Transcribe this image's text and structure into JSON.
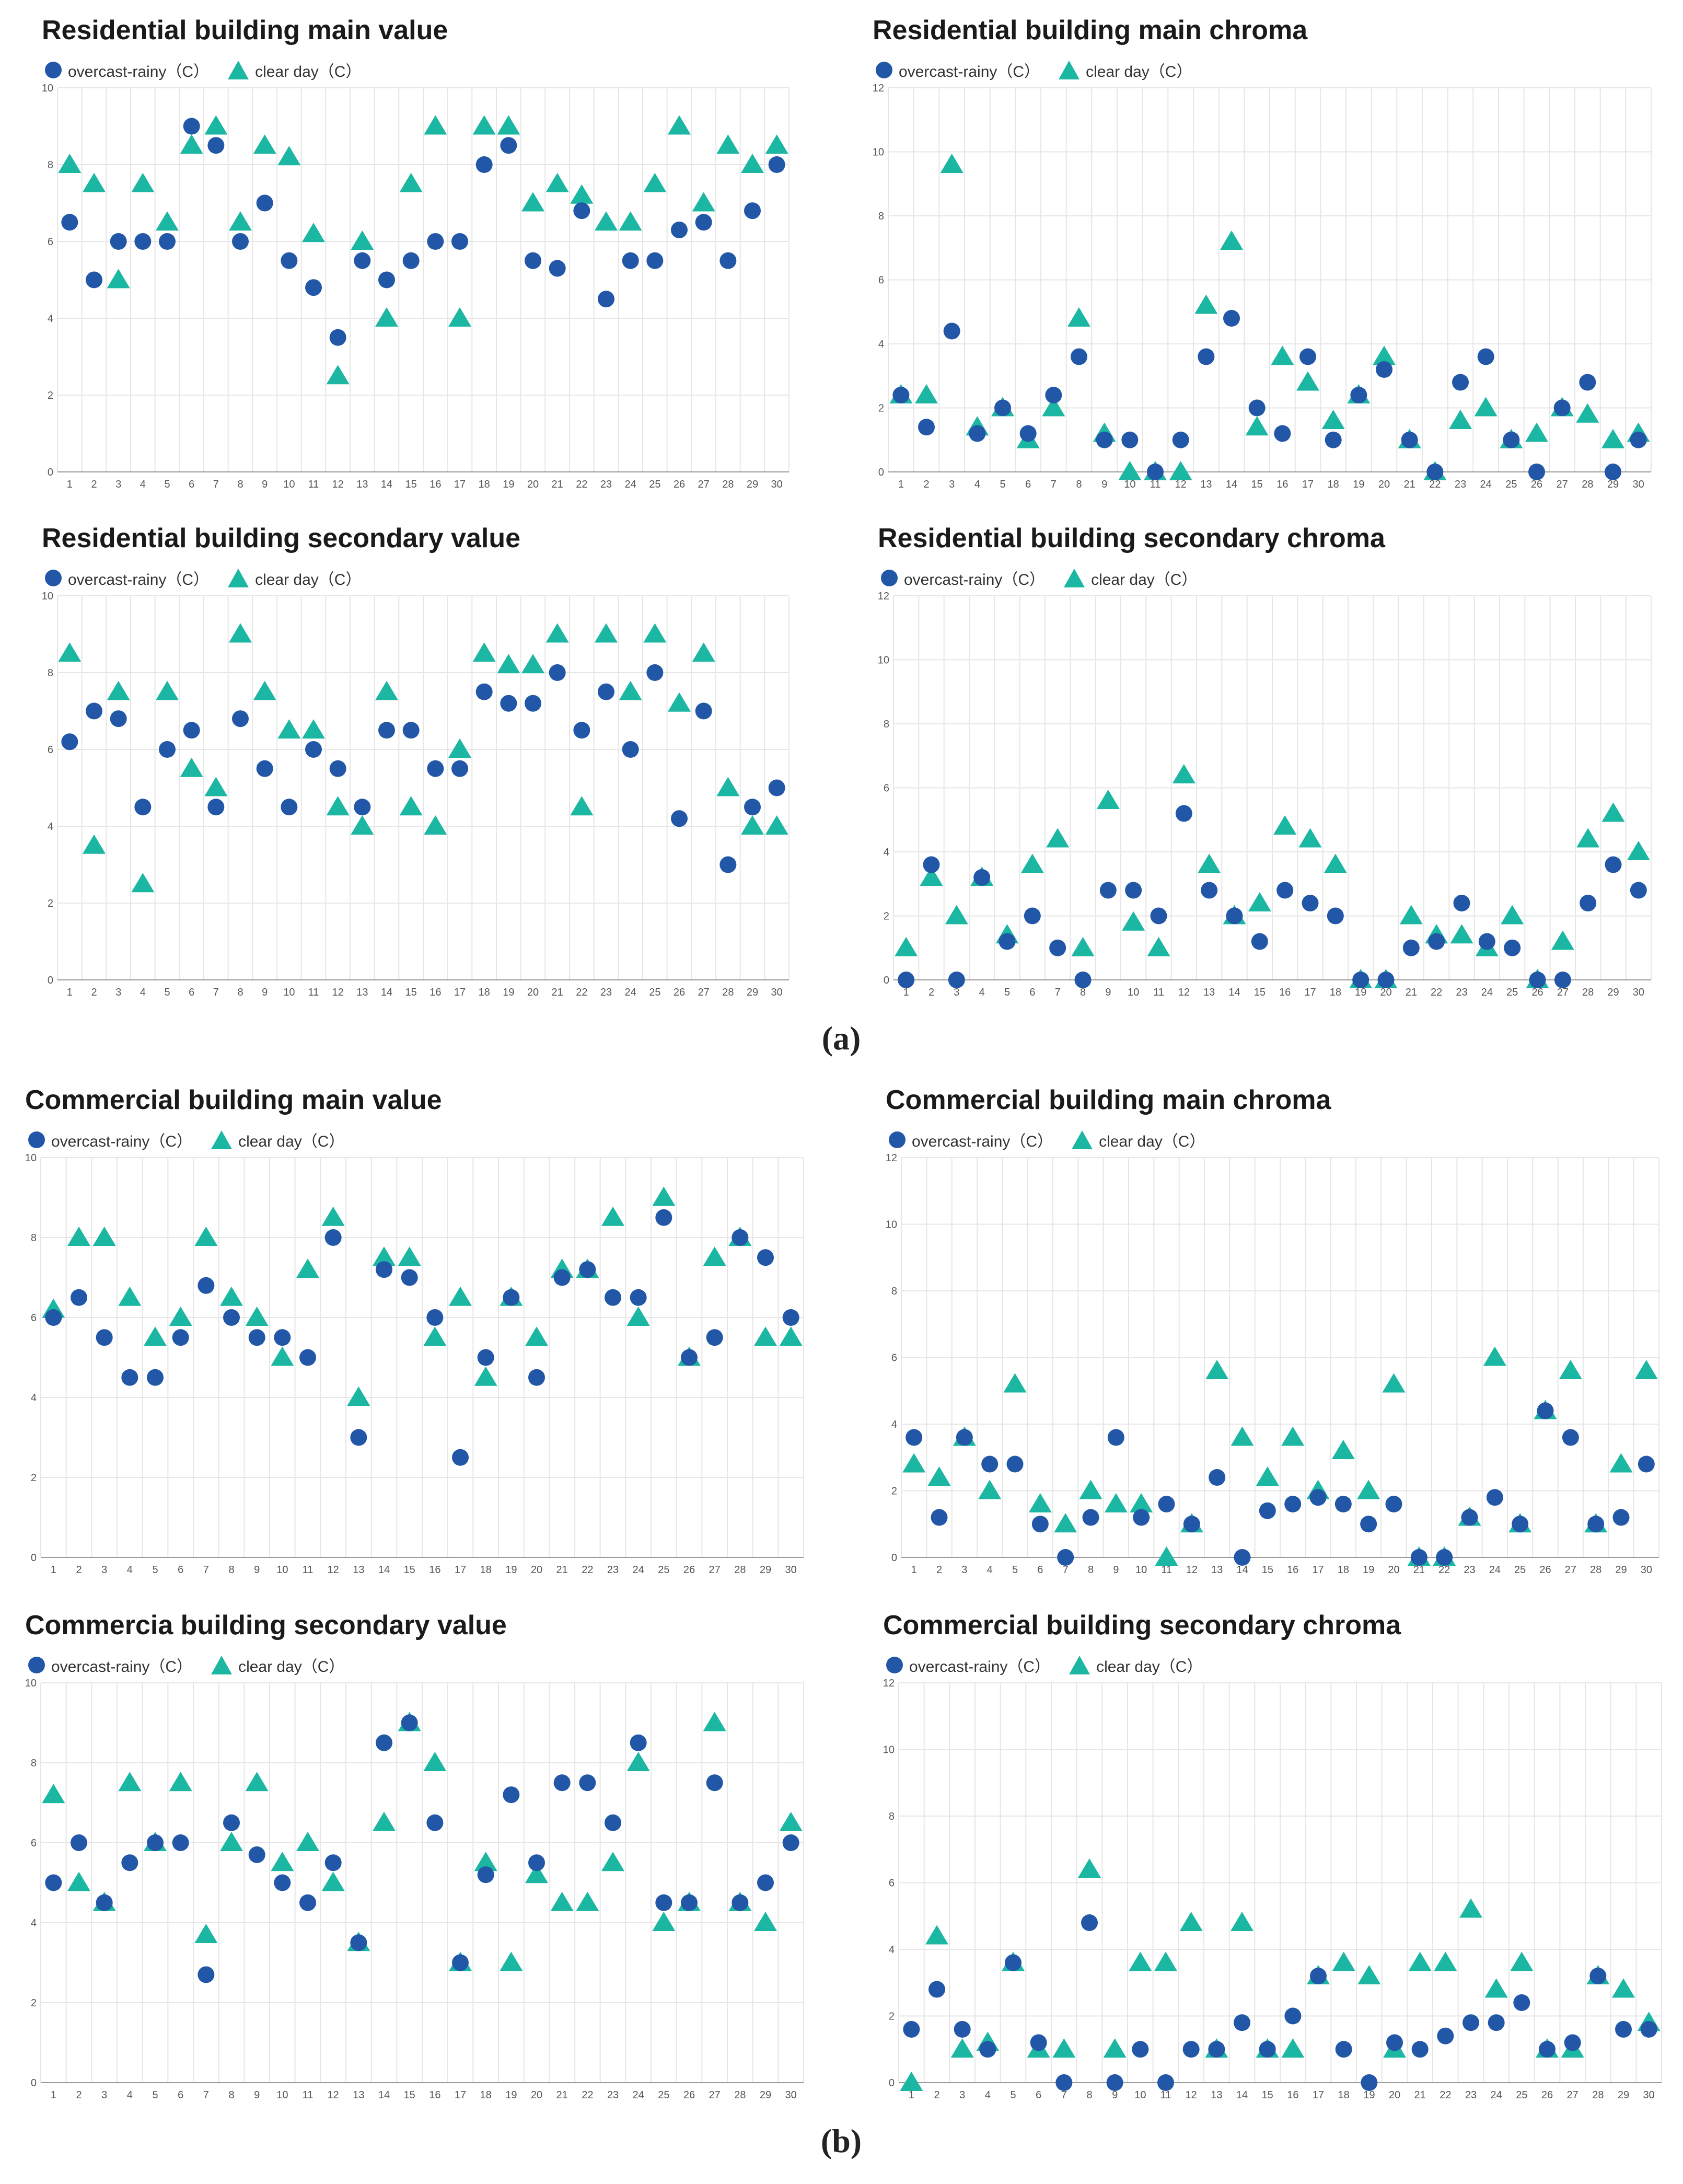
{
  "legend": {
    "series_a": "overcast-rainy（C）",
    "series_b": "clear day（C）"
  },
  "colors": {
    "series_a": "#2257a8",
    "series_b": "#1bb7a3",
    "grid": "#e6e6e6"
  },
  "captions": {
    "a": "(a)",
    "b": "(b)"
  },
  "chart_data": [
    {
      "id": "res-main-value",
      "type": "scatter",
      "title": "Residential building main value",
      "x": [
        1,
        2,
        3,
        4,
        5,
        6,
        7,
        8,
        9,
        10,
        11,
        12,
        13,
        14,
        15,
        16,
        17,
        18,
        19,
        20,
        21,
        22,
        23,
        24,
        25,
        26,
        27,
        28,
        29,
        30
      ],
      "ylim": [
        0,
        10
      ],
      "yticks": [
        0,
        2,
        4,
        6,
        8,
        10
      ],
      "series": [
        {
          "name": "overcast-rainy（C）",
          "marker": "circle",
          "values": [
            6.5,
            5,
            6,
            6,
            6,
            9,
            8.5,
            6,
            7,
            5.5,
            4.8,
            3.5,
            5.5,
            5,
            5.5,
            6,
            6,
            8,
            8.5,
            5.5,
            5.3,
            6.8,
            4.5,
            5.5,
            5.5,
            6.3,
            6.5,
            5.5,
            6.8,
            8
          ]
        },
        {
          "name": "clear day（C）",
          "marker": "triangle",
          "values": [
            8,
            7.5,
            5,
            7.5,
            6.5,
            8.5,
            9,
            6.5,
            8.5,
            8.2,
            6.2,
            2.5,
            6,
            4,
            7.5,
            9,
            4,
            9,
            9,
            7,
            7.5,
            7.2,
            6.5,
            6.5,
            7.5,
            9,
            7,
            8.5,
            8,
            8.5
          ]
        }
      ]
    },
    {
      "id": "res-main-chroma",
      "type": "scatter",
      "title": "Residential building main chroma",
      "x": [
        1,
        2,
        3,
        4,
        5,
        6,
        7,
        8,
        9,
        10,
        11,
        12,
        13,
        14,
        15,
        16,
        17,
        18,
        19,
        20,
        21,
        22,
        23,
        24,
        25,
        26,
        27,
        28,
        29,
        30
      ],
      "ylim": [
        0,
        12
      ],
      "yticks": [
        0,
        2,
        4,
        6,
        8,
        10,
        12
      ],
      "series": [
        {
          "name": "overcast-rainy（C）",
          "marker": "circle",
          "values": [
            2.4,
            1.4,
            4.4,
            1.2,
            2,
            1.2,
            2.4,
            3.6,
            1,
            1,
            0,
            1,
            3.6,
            4.8,
            2,
            1.2,
            3.6,
            1,
            2.4,
            3.2,
            1,
            0,
            2.8,
            3.6,
            1,
            0,
            2,
            2.8,
            0,
            1
          ]
        },
        {
          "name": "clear day（C）",
          "marker": "triangle",
          "values": [
            2.4,
            2.4,
            9.6,
            1.4,
            2,
            1,
            2,
            4.8,
            1.2,
            0,
            0,
            0,
            5.2,
            7.2,
            1.4,
            3.6,
            2.8,
            1.6,
            2.4,
            3.6,
            1,
            0,
            1.6,
            2,
            1,
            1.2,
            2,
            1.8,
            1,
            1.2
          ]
        }
      ]
    },
    {
      "id": "res-secondary-value",
      "type": "scatter",
      "title": "Residential building secondary value",
      "x": [
        1,
        2,
        3,
        4,
        5,
        6,
        7,
        8,
        9,
        10,
        11,
        12,
        13,
        14,
        15,
        16,
        17,
        18,
        19,
        20,
        21,
        22,
        23,
        24,
        25,
        26,
        27,
        28,
        29,
        30
      ],
      "ylim": [
        0,
        10
      ],
      "yticks": [
        0,
        2,
        4,
        6,
        8,
        10
      ],
      "series": [
        {
          "name": "overcast-rainy（C）",
          "marker": "circle",
          "values": [
            6.2,
            7,
            6.8,
            4.5,
            6,
            6.5,
            4.5,
            6.8,
            5.5,
            4.5,
            6,
            5.5,
            4.5,
            6.5,
            6.5,
            5.5,
            5.5,
            7.5,
            7.2,
            7.2,
            8,
            6.5,
            7.5,
            6,
            8,
            4.2,
            7,
            3,
            4.5,
            5
          ]
        },
        {
          "name": "clear day（C）",
          "marker": "triangle",
          "values": [
            8.5,
            3.5,
            7.5,
            2.5,
            7.5,
            5.5,
            5,
            9,
            7.5,
            6.5,
            6.5,
            4.5,
            4,
            7.5,
            4.5,
            4,
            6,
            8.5,
            8.2,
            8.2,
            9,
            4.5,
            9,
            7.5,
            9,
            7.2,
            8.5,
            5,
            4,
            4
          ]
        }
      ]
    },
    {
      "id": "res-secondary-chroma",
      "type": "scatter",
      "title": "Residential building secondary chroma",
      "x": [
        1,
        2,
        3,
        4,
        5,
        6,
        7,
        8,
        9,
        10,
        11,
        12,
        13,
        14,
        15,
        16,
        17,
        18,
        19,
        20,
        21,
        22,
        23,
        24,
        25,
        26,
        27,
        28,
        29,
        30
      ],
      "ylim": [
        0,
        12
      ],
      "yticks": [
        0,
        2,
        4,
        6,
        8,
        10,
        12
      ],
      "series": [
        {
          "name": "overcast-rainy（C）",
          "marker": "circle",
          "values": [
            0,
            3.6,
            0,
            3.2,
            1.2,
            2,
            1,
            0,
            2.8,
            2.8,
            2,
            5.2,
            2.8,
            2,
            1.2,
            2.8,
            2.4,
            2,
            0,
            0,
            1,
            1.2,
            2.4,
            1.2,
            1,
            0,
            0,
            2.4,
            3.6,
            2.8
          ]
        },
        {
          "name": "clear day（C）",
          "marker": "triangle",
          "values": [
            1,
            3.2,
            2,
            3.2,
            1.4,
            3.6,
            4.4,
            1,
            5.6,
            1.8,
            1,
            6.4,
            3.6,
            2,
            2.4,
            4.8,
            4.4,
            3.6,
            0,
            0,
            2,
            1.4,
            1.4,
            1,
            2,
            0,
            1.2,
            4.4,
            5.2,
            4
          ]
        }
      ]
    },
    {
      "id": "com-main-value",
      "type": "scatter",
      "title": "Commercial building main value",
      "x": [
        1,
        2,
        3,
        4,
        5,
        6,
        7,
        8,
        9,
        10,
        11,
        12,
        13,
        14,
        15,
        16,
        17,
        18,
        19,
        20,
        21,
        22,
        23,
        24,
        25,
        26,
        27,
        28,
        29,
        30
      ],
      "ylim": [
        0,
        10
      ],
      "yticks": [
        0,
        2,
        4,
        6,
        8,
        10
      ],
      "series": [
        {
          "name": "overcast-rainy（C）",
          "marker": "circle",
          "values": [
            6,
            6.5,
            5.5,
            4.5,
            4.5,
            5.5,
            6.8,
            6,
            5.5,
            5.5,
            5,
            8,
            3,
            7.2,
            7,
            6,
            2.5,
            5,
            6.5,
            4.5,
            7,
            7.2,
            6.5,
            6.5,
            8.5,
            5,
            5.5,
            8,
            7.5,
            6
          ]
        },
        {
          "name": "clear day（C）",
          "marker": "triangle",
          "values": [
            6.2,
            8,
            8,
            6.5,
            5.5,
            6,
            8,
            6.5,
            6,
            5,
            7.2,
            8.5,
            4,
            7.5,
            7.5,
            5.5,
            6.5,
            4.5,
            6.5,
            5.5,
            7.2,
            7.2,
            8.5,
            6,
            9,
            5,
            7.5,
            8,
            5.5,
            5.5
          ]
        }
      ]
    },
    {
      "id": "com-main-chroma",
      "type": "scatter",
      "title": "Commercial building main chroma",
      "x": [
        1,
        2,
        3,
        4,
        5,
        6,
        7,
        8,
        9,
        10,
        11,
        12,
        13,
        14,
        15,
        16,
        17,
        18,
        19,
        20,
        21,
        22,
        23,
        24,
        25,
        26,
        27,
        28,
        29,
        30
      ],
      "ylim": [
        0,
        12
      ],
      "yticks": [
        0,
        2,
        4,
        6,
        8,
        10,
        12
      ],
      "series": [
        {
          "name": "overcast-rainy（C）",
          "marker": "circle",
          "values": [
            3.6,
            1.2,
            3.6,
            2.8,
            2.8,
            1,
            0,
            1.2,
            3.6,
            1.2,
            1.6,
            1,
            2.4,
            0,
            1.4,
            1.6,
            1.8,
            1.6,
            1,
            1.6,
            0,
            0,
            1.2,
            1.8,
            1,
            4.4,
            3.6,
            1,
            1.2,
            2.8
          ]
        },
        {
          "name": "clear day（C）",
          "marker": "triangle",
          "values": [
            2.8,
            2.4,
            3.6,
            2,
            5.2,
            1.6,
            1,
            2,
            1.6,
            1.6,
            0,
            1,
            5.6,
            3.6,
            2.4,
            3.6,
            2,
            3.2,
            2,
            5.2,
            0,
            0,
            1.2,
            6,
            1,
            4.4,
            5.6,
            1,
            2.8,
            5.6
          ]
        }
      ]
    },
    {
      "id": "com-secondary-value",
      "type": "scatter",
      "title": "Commercia building secondary value",
      "x": [
        1,
        2,
        3,
        4,
        5,
        6,
        7,
        8,
        9,
        10,
        11,
        12,
        13,
        14,
        15,
        16,
        17,
        18,
        19,
        20,
        21,
        22,
        23,
        24,
        25,
        26,
        27,
        28,
        29,
        30
      ],
      "ylim": [
        0,
        10
      ],
      "yticks": [
        0,
        2,
        4,
        6,
        8,
        10
      ],
      "series": [
        {
          "name": "overcast-rainy（C）",
          "marker": "circle",
          "values": [
            5,
            6,
            4.5,
            5.5,
            6,
            6,
            2.7,
            6.5,
            5.7,
            5,
            4.5,
            5.5,
            3.5,
            8.5,
            9,
            6.5,
            3,
            5.2,
            7.2,
            5.5,
            7.5,
            7.5,
            6.5,
            8.5,
            4.5,
            4.5,
            7.5,
            4.5,
            5,
            6
          ]
        },
        {
          "name": "clear day（C）",
          "marker": "triangle",
          "values": [
            7.2,
            5,
            4.5,
            7.5,
            6,
            7.5,
            3.7,
            6,
            7.5,
            5.5,
            6,
            5,
            3.5,
            6.5,
            9,
            8,
            3,
            5.5,
            3,
            5.2,
            4.5,
            4.5,
            5.5,
            8,
            4,
            4.5,
            9,
            4.5,
            4,
            6.5
          ]
        }
      ]
    },
    {
      "id": "com-secondary-chroma",
      "type": "scatter",
      "title": "Commercial building secondary chroma",
      "x": [
        1,
        2,
        3,
        4,
        5,
        6,
        7,
        8,
        9,
        10,
        11,
        12,
        13,
        14,
        15,
        16,
        17,
        18,
        19,
        20,
        21,
        22,
        23,
        24,
        25,
        26,
        27,
        28,
        29,
        30
      ],
      "ylim": [
        0,
        12
      ],
      "yticks": [
        0,
        2,
        4,
        6,
        8,
        10,
        12
      ],
      "series": [
        {
          "name": "overcast-rainy（C）",
          "marker": "circle",
          "values": [
            1.6,
            2.8,
            1.6,
            1,
            3.6,
            1.2,
            0,
            4.8,
            0,
            1,
            0,
            1,
            1,
            1.8,
            1,
            2,
            3.2,
            1,
            0,
            1.2,
            1,
            1.4,
            1.8,
            1.8,
            2.4,
            1,
            1.2,
            3.2,
            1.6,
            1.6
          ]
        },
        {
          "name": "clear day（C）",
          "marker": "triangle",
          "values": [
            0,
            4.4,
            1,
            1.2,
            3.6,
            1,
            1,
            6.4,
            1,
            3.6,
            3.6,
            4.8,
            1,
            4.8,
            1,
            1,
            3.2,
            3.6,
            3.2,
            1,
            3.6,
            3.6,
            5.2,
            2.8,
            3.6,
            1,
            1,
            3.2,
            2.8,
            1.8
          ]
        }
      ]
    }
  ]
}
